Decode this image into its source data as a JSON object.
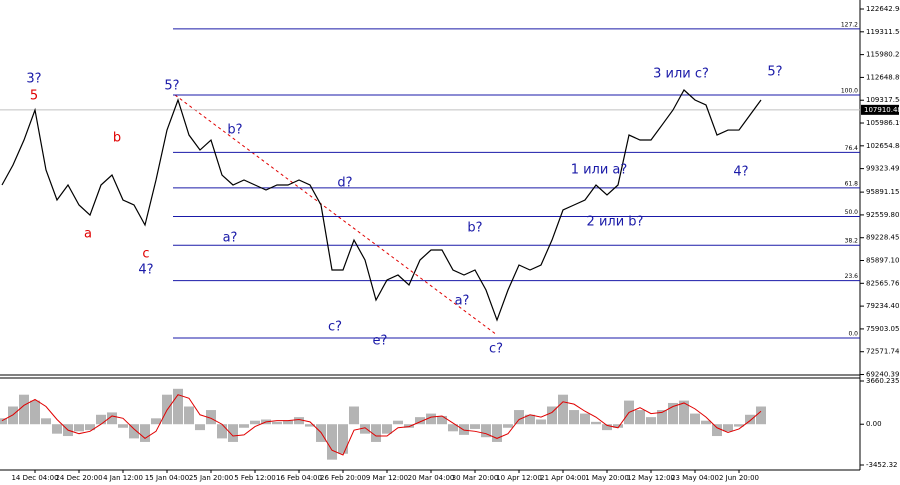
{
  "chart_data": [
    {
      "type": "line",
      "color": "#000000",
      "categories": [
        null,
        null,
        null,
        "14 Dec 04:00",
        null,
        null,
        null,
        "24 Dec 20:00",
        null,
        null,
        null,
        "4 Jan 12:00",
        null,
        null,
        null,
        "15 Jan 04:00",
        null,
        null,
        null,
        "25 Jan 20:00",
        null,
        null,
        null,
        "5 Feb 12:00",
        null,
        null,
        null,
        "16 Feb 04:00",
        null,
        null,
        null,
        "26 Feb 20:00",
        null,
        null,
        null,
        "9 Mar 12:00",
        null,
        null,
        null,
        "20 Mar 04:00",
        null,
        null,
        null,
        "30 Mar 20:00",
        null,
        null,
        null,
        "10 Apr 12:00",
        null,
        null,
        null,
        "21 Apr 04:00",
        null,
        null,
        null,
        "1 May 20:00",
        null,
        null,
        null,
        "12 May 12:00",
        null,
        null,
        null,
        "23 May 04:00",
        null,
        null,
        null,
        "2 Jun 20:00",
        null,
        null
      ],
      "values": [
        96930,
        99850,
        103500,
        107890,
        99120,
        94740,
        96930,
        94010,
        92540,
        96930,
        98390,
        94740,
        94010,
        91080,
        97660,
        104960,
        109350,
        104230,
        102040,
        103500,
        98390,
        96930,
        97660,
        96930,
        96200,
        96930,
        96930,
        97660,
        96930,
        94010,
        84510,
        84510,
        88890,
        85970,
        80130,
        83050,
        83780,
        82320,
        85970,
        87430,
        87430,
        84510,
        83780,
        84510,
        81590,
        77200,
        81590,
        85240,
        84510,
        85240,
        88890,
        93280,
        94010,
        94740,
        96930,
        95470,
        96930,
        104230,
        103500,
        103500,
        105690,
        107890,
        110810,
        109350,
        108620,
        104230,
        104960,
        104960,
        107160,
        109350
      ],
      "ylim": [
        69170,
        123960
      ],
      "yticks": [
        122642.94,
        119311.56,
        115980.25,
        112648.89,
        109317.54,
        105986.19,
        102654.84,
        99323.49,
        95891.15,
        {
          "value": 92559.8,
          "label": "92559.80"
        },
        89228.45,
        {
          "value": 85897.1,
          "label": "85897.10"
        },
        82565.76,
        {
          "value": 79234.4,
          "label": "79234.40"
        },
        75903.05,
        72571.74,
        69240.39
      ],
      "last_price": 107910.48,
      "fib_color": "#1a1aa8",
      "fib_levels": [
        {
          "ratio": 127.2,
          "price": 119734
        },
        {
          "ratio": {
            "value": 100,
            "label": "100.0"
          },
          "price": 110077
        },
        {
          "ratio": 76.4,
          "price": 101698
        },
        {
          "ratio": 61.8,
          "price": 96514
        },
        {
          "ratio": {
            "value": 50,
            "label": "50.0"
          },
          "price": 92325
        },
        {
          "ratio": 38.2,
          "price": 88135
        },
        {
          "ratio": 23.6,
          "price": 82951
        },
        {
          "ratio": {
            "value": 0,
            "label": "0.0"
          },
          "price": 74572
        }
      ],
      "annotations": [
        {
          "text": "3?",
          "color": "#1a1aa8"
        },
        {
          "text": "5",
          "color": "#e00000"
        },
        {
          "text": "b",
          "color": "#e00000"
        },
        {
          "text": "a",
          "color": "#e00000"
        },
        {
          "text": "c",
          "color": "#e00000"
        },
        {
          "text": "4?",
          "color": "#1a1aa8"
        },
        {
          "text": "5?",
          "color": "#1a1aa8"
        },
        {
          "text": "b?",
          "color": "#1a1aa8"
        },
        {
          "text": "a?",
          "color": "#1a1aa8"
        },
        {
          "text": "d?",
          "color": "#1a1aa8"
        },
        {
          "text": "c?",
          "color": "#1a1aa8"
        },
        {
          "text": "e?",
          "color": "#1a1aa8"
        },
        {
          "text": "b?",
          "color": "#1a1aa8"
        },
        {
          "text": "a?",
          "color": "#1a1aa8"
        },
        {
          "text": "c?",
          "color": "#1a1aa8"
        },
        {
          "text": "1 или a?",
          "color": "#1a1aa8"
        },
        {
          "text": "2 или b?",
          "color": "#1a1aa8"
        },
        {
          "text": "3 или c?",
          "color": "#1a1aa8"
        },
        {
          "text": "4?",
          "color": "#1a1aa8"
        },
        {
          "text": "5?",
          "color": "#1a1aa8"
        }
      ]
    },
    {
      "type": "bar",
      "ylim": [
        -3876,
        3914
      ],
      "yticks": [
        3660.235,
        {
          "value": 0,
          "label": "0.00"
        },
        -3452.32
      ],
      "series": [
        {
          "type": "bar",
          "color": "#b4b4b4",
          "values": [
            500,
            1500,
            2500,
            2000,
            500,
            -800,
            -1000,
            -600,
            -500,
            800,
            1000,
            -300,
            -1200,
            -1500,
            500,
            2500,
            3000,
            1500,
            -500,
            1200,
            -1200,
            -1500,
            -300,
            300,
            400,
            200,
            300,
            600,
            -200,
            -1500,
            -3000,
            -2500,
            1500,
            -800,
            -1500,
            -800,
            300,
            -300,
            600,
            900,
            700,
            -600,
            -900,
            -400,
            -1100,
            -1500,
            -300,
            1200,
            800,
            400,
            1500,
            2500,
            1200,
            900,
            200,
            -500,
            -300,
            2000,
            1200,
            600,
            1200,
            1800,
            2000,
            900,
            300,
            -1000,
            -600,
            -200,
            800,
            1500
          ]
        },
        {
          "type": "line",
          "color": "#e00000",
          "values": [
            300,
            800,
            1600,
            2100,
            1500,
            400,
            -500,
            -800,
            -600,
            0,
            700,
            500,
            -400,
            -1200,
            -600,
            1200,
            2500,
            2200,
            800,
            500,
            0,
            -1000,
            -900,
            -200,
            200,
            300,
            300,
            400,
            200,
            -700,
            -2200,
            -2600,
            -500,
            -300,
            -1000,
            -1000,
            -300,
            -200,
            200,
            600,
            700,
            100,
            -500,
            -600,
            -800,
            -1200,
            -800,
            400,
            800,
            600,
            1000,
            1900,
            1700,
            1100,
            600,
            -100,
            -300,
            1000,
            1400,
            900,
            1000,
            1500,
            1800,
            1300,
            600,
            -300,
            -700,
            -400,
            300,
            1100
          ]
        }
      ]
    }
  ]
}
